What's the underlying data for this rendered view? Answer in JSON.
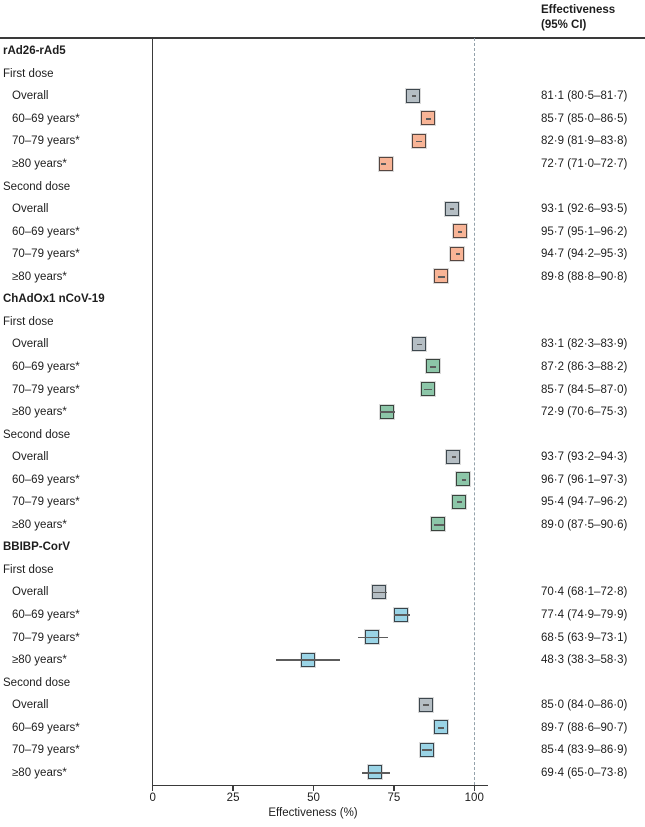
{
  "header": {
    "line1": "Effectiveness",
    "line2": "(95% CI)"
  },
  "colors": {
    "axis": "#3a3a3a",
    "reference_dashed_line": "#94a2ab",
    "ci_line": "#5c5c5c",
    "text": "#1d1d1d",
    "palette": {
      "overall": {
        "fill": "#b5bec4",
        "border": "#3d474e"
      },
      "rad26": {
        "fill": "#f8b496",
        "border": "#564640"
      },
      "chadox1": {
        "fill": "#8cc6a8",
        "border": "#3a433d"
      },
      "bbibp": {
        "fill": "#9ad4e6",
        "border": "#39444b"
      }
    }
  },
  "chart_data": {
    "type": "scatter",
    "subtype": "forest-plot",
    "title": "",
    "xlabel": "Effectiveness (%)",
    "value_column_header": "Effectiveness (95% CI)",
    "xticks": [
      0,
      25,
      50,
      75,
      100
    ],
    "tick_labels": [
      "0",
      "25",
      "50",
      "75",
      "100"
    ],
    "xlim": [
      0,
      104
    ],
    "reference_line_x": 100,
    "grid": false,
    "rows": [
      {
        "kind": "group",
        "label": "rAd26-rAd5"
      },
      {
        "kind": "subhead",
        "label": "First dose"
      },
      {
        "kind": "data",
        "label": "Overall",
        "est": 81.1,
        "lo": 80.5,
        "hi": 81.7,
        "color_key": "overall",
        "text": "81·1 (80·5–81·7)"
      },
      {
        "kind": "data",
        "label": "60–69 years*",
        "est": 85.7,
        "lo": 85.0,
        "hi": 86.5,
        "color_key": "rad26",
        "text": "85·7 (85·0–86·5)"
      },
      {
        "kind": "data",
        "label": "70–79 years*",
        "est": 82.9,
        "lo": 81.9,
        "hi": 83.8,
        "color_key": "rad26",
        "text": "82·9 (81·9–83·8)"
      },
      {
        "kind": "data",
        "label": "≥80 years*",
        "est": 72.7,
        "lo": 71.0,
        "hi": 72.7,
        "color_key": "rad26",
        "text": "72·7 (71·0–72·7)"
      },
      {
        "kind": "subhead",
        "label": "Second dose"
      },
      {
        "kind": "data",
        "label": "Overall",
        "est": 93.1,
        "lo": 92.6,
        "hi": 93.5,
        "color_key": "overall",
        "text": "93·1 (92·6–93·5)"
      },
      {
        "kind": "data",
        "label": "60–69 years*",
        "est": 95.7,
        "lo": 95.1,
        "hi": 96.2,
        "color_key": "rad26",
        "text": "95·7 (95·1–96·2)"
      },
      {
        "kind": "data",
        "label": "70–79 years*",
        "est": 94.7,
        "lo": 94.2,
        "hi": 95.3,
        "color_key": "rad26",
        "text": "94·7 (94·2–95·3)"
      },
      {
        "kind": "data",
        "label": "≥80 years*",
        "est": 89.8,
        "lo": 88.8,
        "hi": 90.8,
        "color_key": "rad26",
        "text": "89·8 (88·8–90·8)"
      },
      {
        "kind": "group",
        "label": "ChAdOx1 nCoV-19"
      },
      {
        "kind": "subhead",
        "label": "First dose"
      },
      {
        "kind": "data",
        "label": "Overall",
        "est": 83.1,
        "lo": 82.3,
        "hi": 83.9,
        "color_key": "overall",
        "text": "83·1 (82·3–83·9)"
      },
      {
        "kind": "data",
        "label": "60–69 years*",
        "est": 87.2,
        "lo": 86.3,
        "hi": 88.2,
        "color_key": "chadox1",
        "text": "87·2 (86·3–88·2)"
      },
      {
        "kind": "data",
        "label": "70–79 years*",
        "est": 85.7,
        "lo": 84.5,
        "hi": 87.0,
        "color_key": "chadox1",
        "text": "85·7 (84·5–87·0)"
      },
      {
        "kind": "data",
        "label": "≥80 years*",
        "est": 72.9,
        "lo": 70.6,
        "hi": 75.3,
        "color_key": "chadox1",
        "text": "72·9 (70·6–75·3)"
      },
      {
        "kind": "subhead",
        "label": "Second dose"
      },
      {
        "kind": "data",
        "label": "Overall",
        "est": 93.7,
        "lo": 93.2,
        "hi": 94.3,
        "color_key": "overall",
        "text": "93·7 (93·2–94·3)"
      },
      {
        "kind": "data",
        "label": "60–69 years*",
        "est": 96.7,
        "lo": 96.1,
        "hi": 97.3,
        "color_key": "chadox1",
        "text": "96·7 (96·1–97·3)"
      },
      {
        "kind": "data",
        "label": "70–79 years*",
        "est": 95.4,
        "lo": 94.7,
        "hi": 96.2,
        "color_key": "chadox1",
        "text": "95·4 (94·7–96·2)"
      },
      {
        "kind": "data",
        "label": "≥80 years*",
        "est": 89.0,
        "lo": 87.5,
        "hi": 90.6,
        "color_key": "chadox1",
        "text": "89·0 (87·5–90·6)"
      },
      {
        "kind": "group",
        "label": "BBIBP-CorV"
      },
      {
        "kind": "subhead",
        "label": "First dose"
      },
      {
        "kind": "data",
        "label": "Overall",
        "est": 70.4,
        "lo": 68.1,
        "hi": 72.8,
        "color_key": "overall",
        "text": "70·4 (68·1–72·8)"
      },
      {
        "kind": "data",
        "label": "60–69 years*",
        "est": 77.4,
        "lo": 74.9,
        "hi": 79.9,
        "color_key": "bbibp",
        "text": "77·4 (74·9–79·9)"
      },
      {
        "kind": "data",
        "label": "70–79 years*",
        "est": 68.5,
        "lo": 63.9,
        "hi": 73.1,
        "color_key": "bbibp",
        "text": "68·5 (63·9–73·1)"
      },
      {
        "kind": "data",
        "label": "≥80 years*",
        "est": 48.3,
        "lo": 38.3,
        "hi": 58.3,
        "color_key": "bbibp",
        "text": "48·3 (38·3–58·3)"
      },
      {
        "kind": "subhead",
        "label": "Second dose"
      },
      {
        "kind": "data",
        "label": "Overall",
        "est": 85.0,
        "lo": 84.0,
        "hi": 86.0,
        "color_key": "overall",
        "text": "85·0 (84·0–86·0)"
      },
      {
        "kind": "data",
        "label": "60–69 years*",
        "est": 89.7,
        "lo": 88.6,
        "hi": 90.7,
        "color_key": "bbibp",
        "text": "89·7 (88·6–90·7)"
      },
      {
        "kind": "data",
        "label": "70–79 years*",
        "est": 85.4,
        "lo": 83.9,
        "hi": 86.9,
        "color_key": "bbibp",
        "text": "85·4 (83·9–86·9)"
      },
      {
        "kind": "data",
        "label": "≥80 years*",
        "est": 69.4,
        "lo": 65.0,
        "hi": 73.8,
        "color_key": "bbibp",
        "text": "69·4 (65·0–73·8)"
      }
    ]
  }
}
